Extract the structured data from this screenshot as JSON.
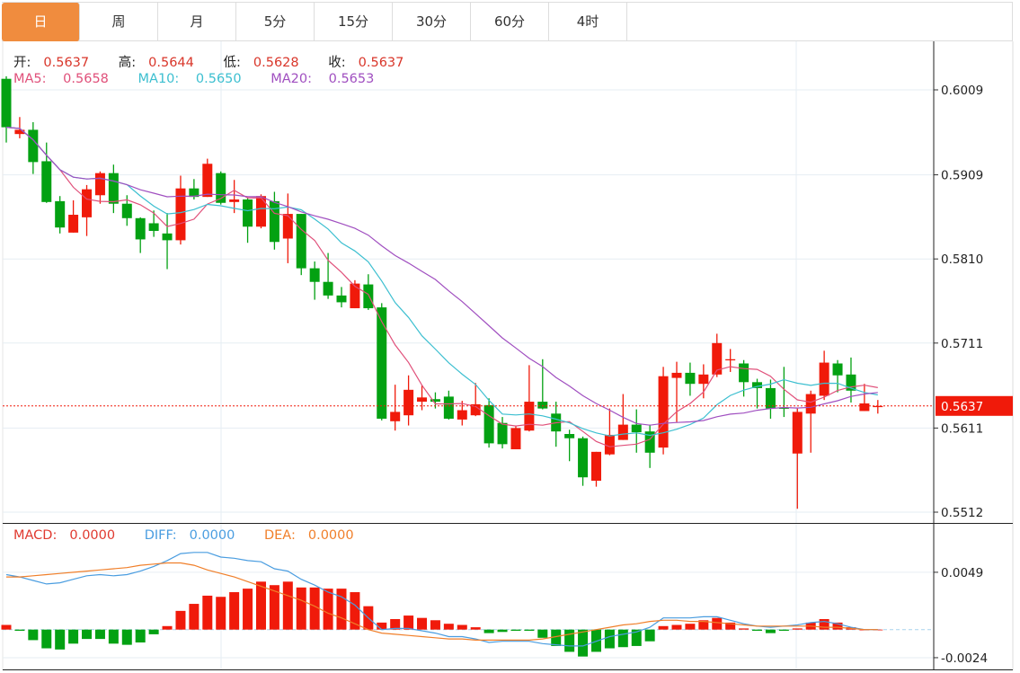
{
  "tabs": [
    {
      "label": "日",
      "active": true
    },
    {
      "label": "周",
      "active": false
    },
    {
      "label": "月",
      "active": false
    },
    {
      "label": "5分",
      "active": false
    },
    {
      "label": "15分",
      "active": false
    },
    {
      "label": "30分",
      "active": false
    },
    {
      "label": "60分",
      "active": false
    },
    {
      "label": "4时",
      "active": false
    }
  ],
  "ohlc_legend": {
    "open_label": "开:",
    "open": "0.5637",
    "high_label": "高:",
    "high": "0.5644",
    "low_label": "低:",
    "low": "0.5628",
    "close_label": "收:",
    "close": "0.5637"
  },
  "ma_legend": {
    "ma5_label": "MA5:",
    "ma5": "0.5658",
    "ma10_label": "MA10:",
    "ma10": "0.5650",
    "ma20_label": "MA20:",
    "ma20": "0.5653"
  },
  "macd_legend": {
    "macd_label": "MACD:",
    "macd": "0.0000",
    "diff_label": "DIFF:",
    "diff": "0.0000",
    "dea_label": "DEA:",
    "dea": "0.0000"
  },
  "current_price": "0.5637",
  "colors": {
    "tab_active": "#f08c3e",
    "up": "#f01a0a",
    "down": "#03a112",
    "ma5": "#e0507a",
    "ma10": "#3cbfd0",
    "ma20": "#a04fc0",
    "macd": "#e03a30",
    "diff": "#4a9de0",
    "dea": "#f07f2a"
  },
  "chart_data": [
    {
      "type": "candlestick",
      "title": "",
      "price_ticks": [
        "0.6009",
        "0.5909",
        "0.5810",
        "0.5711",
        "0.5611",
        "0.5512"
      ],
      "ylim": [
        0.5512,
        0.6009
      ],
      "ma_periods": [
        5,
        10,
        20
      ],
      "ohlc": [
        [
          0.6022,
          0.6025,
          0.5947,
          0.5965
        ],
        [
          0.5957,
          0.5977,
          0.5952,
          0.5962
        ],
        [
          0.5962,
          0.5971,
          0.591,
          0.5924
        ],
        [
          0.5925,
          0.5947,
          0.5876,
          0.5877
        ],
        [
          0.5878,
          0.5884,
          0.584,
          0.5847
        ],
        [
          0.5841,
          0.5879,
          0.5841,
          0.5862
        ],
        [
          0.5859,
          0.5897,
          0.5837,
          0.5892
        ],
        [
          0.5885,
          0.5913,
          0.5875,
          0.5911
        ],
        [
          0.5911,
          0.5921,
          0.5864,
          0.5875
        ],
        [
          0.5875,
          0.5885,
          0.5849,
          0.5858
        ],
        [
          0.5858,
          0.5859,
          0.5817,
          0.5833
        ],
        [
          0.5852,
          0.5867,
          0.5836,
          0.5843
        ],
        [
          0.584,
          0.5864,
          0.5798,
          0.5832
        ],
        [
          0.5832,
          0.5908,
          0.5827,
          0.5893
        ],
        [
          0.5893,
          0.5904,
          0.588,
          0.5883
        ],
        [
          0.5883,
          0.5928,
          0.5883,
          0.5922
        ],
        [
          0.5911,
          0.5913,
          0.5874,
          0.5876
        ],
        [
          0.5877,
          0.5903,
          0.5864,
          0.588
        ],
        [
          0.588,
          0.5882,
          0.5829,
          0.5848
        ],
        [
          0.5848,
          0.5886,
          0.5846,
          0.5884
        ],
        [
          0.5878,
          0.5889,
          0.5821,
          0.583
        ],
        [
          0.5834,
          0.5887,
          0.5805,
          0.5863
        ],
        [
          0.5863,
          0.5863,
          0.5791,
          0.5799
        ],
        [
          0.5799,
          0.5807,
          0.5762,
          0.5783
        ],
        [
          0.5783,
          0.5817,
          0.5763,
          0.5767
        ],
        [
          0.5767,
          0.5777,
          0.5753,
          0.5759
        ],
        [
          0.5752,
          0.5785,
          0.5752,
          0.5781
        ],
        [
          0.578,
          0.5792,
          0.575,
          0.5752
        ],
        [
          0.5753,
          0.5758,
          0.562,
          0.5622
        ],
        [
          0.5619,
          0.5662,
          0.5608,
          0.563
        ],
        [
          0.5626,
          0.5673,
          0.5614,
          0.5656
        ],
        [
          0.5642,
          0.5661,
          0.5632,
          0.5647
        ],
        [
          0.5645,
          0.5653,
          0.5634,
          0.5642
        ],
        [
          0.5648,
          0.5655,
          0.5621,
          0.5622
        ],
        [
          0.5621,
          0.5643,
          0.5614,
          0.5632
        ],
        [
          0.5626,
          0.5664,
          0.5625,
          0.5639
        ],
        [
          0.5638,
          0.5646,
          0.5588,
          0.5593
        ],
        [
          0.5617,
          0.5624,
          0.5587,
          0.5592
        ],
        [
          0.5586,
          0.5614,
          0.5586,
          0.5611
        ],
        [
          0.5608,
          0.5685,
          0.5607,
          0.5642
        ],
        [
          0.5642,
          0.5692,
          0.5633,
          0.5634
        ],
        [
          0.5628,
          0.5642,
          0.5589,
          0.5607
        ],
        [
          0.5604,
          0.5609,
          0.5572,
          0.5599
        ],
        [
          0.5599,
          0.5601,
          0.5543,
          0.5553
        ],
        [
          0.5549,
          0.5583,
          0.5542,
          0.5583
        ],
        [
          0.558,
          0.5634,
          0.5579,
          0.5603
        ],
        [
          0.5597,
          0.5651,
          0.5597,
          0.5615
        ],
        [
          0.5615,
          0.5633,
          0.5582,
          0.5606
        ],
        [
          0.5607,
          0.5615,
          0.5564,
          0.5582
        ],
        [
          0.5588,
          0.5683,
          0.558,
          0.5672
        ],
        [
          0.567,
          0.5689,
          0.5618,
          0.5676
        ],
        [
          0.5676,
          0.5688,
          0.5649,
          0.5663
        ],
        [
          0.5663,
          0.5686,
          0.5646,
          0.5674
        ],
        [
          0.5674,
          0.5722,
          0.5671,
          0.5711
        ],
        [
          0.5691,
          0.5704,
          0.5677,
          0.5692
        ],
        [
          0.5687,
          0.5691,
          0.5648,
          0.5665
        ],
        [
          0.5665,
          0.5669,
          0.5634,
          0.5658
        ],
        [
          0.5658,
          0.5668,
          0.5622,
          0.5634
        ],
        [
          0.5635,
          0.5683,
          0.5624,
          0.5634
        ],
        [
          0.5581,
          0.5634,
          0.5516,
          0.563
        ],
        [
          0.5628,
          0.5655,
          0.5582,
          0.5651
        ],
        [
          0.5649,
          0.5702,
          0.5644,
          0.5688
        ],
        [
          0.5687,
          0.5691,
          0.5653,
          0.5673
        ],
        [
          0.5674,
          0.5694,
          0.5641,
          0.5655
        ],
        [
          0.5631,
          0.5663,
          0.5631,
          0.564
        ],
        [
          0.5637,
          0.5644,
          0.5628,
          0.5637
        ]
      ]
    },
    {
      "type": "bar+line",
      "title": "MACD",
      "ticks": [
        "0.0049",
        "-0.0024"
      ],
      "ylim": [
        -0.0024,
        0.0049
      ],
      "macd_hist": [
        0.0004,
        -0.0001,
        -0.0009,
        -0.0016,
        -0.0017,
        -0.0012,
        -0.0008,
        -0.0008,
        -0.0012,
        -0.0013,
        -0.0011,
        -0.0004,
        0.0003,
        0.0016,
        0.0022,
        0.0029,
        0.0028,
        0.0032,
        0.0035,
        0.0041,
        0.0038,
        0.0041,
        0.0036,
        0.0036,
        0.0035,
        0.0035,
        0.0032,
        0.002,
        0.0006,
        0.0009,
        0.0012,
        0.001,
        0.0008,
        0.0005,
        0.0004,
        0.0002,
        -0.0003,
        -0.0002,
        -0.0001,
        -0.0001,
        -0.0007,
        -0.0014,
        -0.0019,
        -0.0023,
        -0.0019,
        -0.0016,
        -0.0015,
        -0.0014,
        -0.001,
        0.0003,
        0.0004,
        0.0005,
        0.0008,
        0.001,
        0.0006,
        0.0001,
        -0.0001,
        -0.0003,
        -0.0001,
        0.0001,
        0.0006,
        0.0009,
        0.0006,
        0.0002,
        0.0,
        0.0
      ],
      "diff": [
        0.0047,
        0.0045,
        0.0042,
        0.0039,
        0.004,
        0.0043,
        0.0046,
        0.0047,
        0.0046,
        0.0047,
        0.005,
        0.0054,
        0.0059,
        0.0065,
        0.0066,
        0.0066,
        0.0062,
        0.0061,
        0.0059,
        0.0058,
        0.0052,
        0.005,
        0.0043,
        0.0038,
        0.0032,
        0.0028,
        0.0021,
        0.001,
        0.0,
        0.0001,
        0.0001,
        -0.0001,
        -0.0003,
        -0.0006,
        -0.0006,
        -0.0008,
        -0.0011,
        -0.001,
        -0.001,
        -0.001,
        -0.0012,
        -0.0013,
        -0.0014,
        -0.0014,
        -0.001,
        -0.0006,
        -0.0004,
        -0.0002,
        0.0002,
        0.001,
        0.001,
        0.001,
        0.0011,
        0.0011,
        0.0008,
        0.0005,
        0.0003,
        0.0002,
        0.0003,
        0.0004,
        0.0006,
        0.0007,
        0.0005,
        0.0002,
        0.0,
        0.0
      ],
      "dea": [
        0.0045,
        0.0045,
        0.0046,
        0.0047,
        0.0048,
        0.0049,
        0.005,
        0.0051,
        0.0052,
        0.0053,
        0.0055,
        0.0056,
        0.0057,
        0.0057,
        0.0055,
        0.0051,
        0.0048,
        0.0045,
        0.0041,
        0.0037,
        0.0033,
        0.0029,
        0.0025,
        0.002,
        0.0014,
        0.001,
        0.0005,
        0.0,
        -0.0003,
        -0.0004,
        -0.0005,
        -0.0006,
        -0.0007,
        -0.0008,
        -0.0008,
        -0.0009,
        -0.0009,
        -0.0009,
        -0.0009,
        -0.0009,
        -0.0008,
        -0.0006,
        -0.0004,
        -0.0002,
        0.0,
        0.0002,
        0.0004,
        0.0005,
        0.0007,
        0.0008,
        0.0008,
        0.0007,
        0.0007,
        0.0006,
        0.0005,
        0.0004,
        0.0003,
        0.0003,
        0.0003,
        0.0003,
        0.0003,
        0.0002,
        0.0002,
        0.0001,
        0.0,
        0.0
      ]
    }
  ]
}
